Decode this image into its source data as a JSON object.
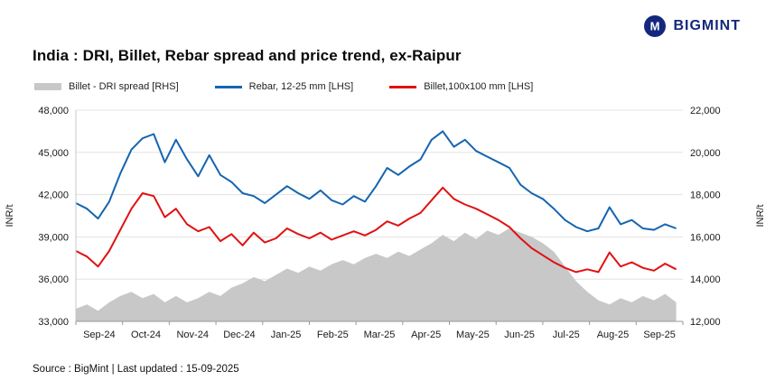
{
  "header": {
    "logo_text": "BIGMINT",
    "brand_color": "#14277e"
  },
  "footer": {
    "text": "Source : BigMint | Last updated : 15-09-2025"
  },
  "chart_data": {
    "type": "line",
    "title": "India : DRI, Billet, Rebar spread and price trend, ex-Raipur",
    "categories": [
      "Sep-24",
      "Oct-24",
      "Nov-24",
      "Dec-24",
      "Jan-25",
      "Feb-25",
      "Mar-25",
      "Apr-25",
      "May-25",
      "Jun-25",
      "Jul-25",
      "Aug-25",
      "Sep-25"
    ],
    "points_per_month": 4.2,
    "grid": true,
    "legend_position": "top",
    "left_axis": {
      "label": "INR/t",
      "min": 33000,
      "max": 48000,
      "tick_values": [
        33000,
        36000,
        39000,
        42000,
        45000,
        48000
      ],
      "ticks": [
        "33,000",
        "36,000",
        "39,000",
        "42,000",
        "45,000",
        "48,000"
      ]
    },
    "right_axis": {
      "label": "INR/t",
      "min": 12000,
      "max": 22000,
      "tick_values": [
        12000,
        14000,
        16000,
        18000,
        20000,
        22000
      ],
      "ticks": [
        "12,000",
        "14,000",
        "16,000",
        "18,000",
        "20,000",
        "22,000"
      ]
    },
    "series": [
      {
        "id": "spread",
        "name": "Billet - DRI spread  [RHS]",
        "type": "area",
        "axis": "right",
        "color": "#c8c8c8",
        "values": [
          12600,
          12800,
          12500,
          12900,
          13200,
          13400,
          13100,
          13300,
          12900,
          13200,
          12900,
          13100,
          13400,
          13200,
          13600,
          13800,
          14100,
          13900,
          14200,
          14500,
          14300,
          14600,
          14400,
          14700,
          14900,
          14700,
          15000,
          15200,
          15000,
          15300,
          15100,
          15400,
          15700,
          16100,
          15800,
          16200,
          15900,
          16300,
          16100,
          16400,
          16200,
          16000,
          15700,
          15300,
          14600,
          13900,
          13400,
          13000,
          12800,
          13100,
          12900,
          13200,
          13000,
          13300,
          12900
        ]
      },
      {
        "id": "rebar",
        "name": "Rebar, 12-25 mm [LHS]",
        "type": "line",
        "axis": "left",
        "color": "#1565b0",
        "values": [
          41400,
          41000,
          40300,
          41500,
          43500,
          45200,
          46000,
          46300,
          44300,
          45900,
          44500,
          43300,
          44800,
          43400,
          42900,
          42100,
          41900,
          41400,
          42000,
          42600,
          42100,
          41700,
          42300,
          41600,
          41300,
          41900,
          41500,
          42600,
          43900,
          43400,
          44000,
          44500,
          45900,
          46500,
          45400,
          45900,
          45100,
          44700,
          44300,
          43900,
          42700,
          42100,
          41700,
          41000,
          40200,
          39700,
          39400,
          39600,
          41100,
          39900,
          40200,
          39600,
          39500,
          39900,
          39600
        ]
      },
      {
        "id": "billet",
        "name": "Billet,100x100 mm [LHS]",
        "type": "line",
        "axis": "left",
        "color": "#e01212",
        "values": [
          38000,
          37600,
          36900,
          38000,
          39500,
          41000,
          42100,
          41900,
          40400,
          41000,
          39900,
          39400,
          39700,
          38700,
          39200,
          38400,
          39300,
          38600,
          38900,
          39600,
          39200,
          38900,
          39300,
          38800,
          39100,
          39400,
          39100,
          39500,
          40100,
          39800,
          40300,
          40700,
          41600,
          42500,
          41700,
          41300,
          41000,
          40600,
          40200,
          39700,
          38900,
          38200,
          37700,
          37200,
          36800,
          36500,
          36700,
          36500,
          37900,
          36900,
          37200,
          36800,
          36600,
          37100,
          36700
        ]
      }
    ]
  }
}
